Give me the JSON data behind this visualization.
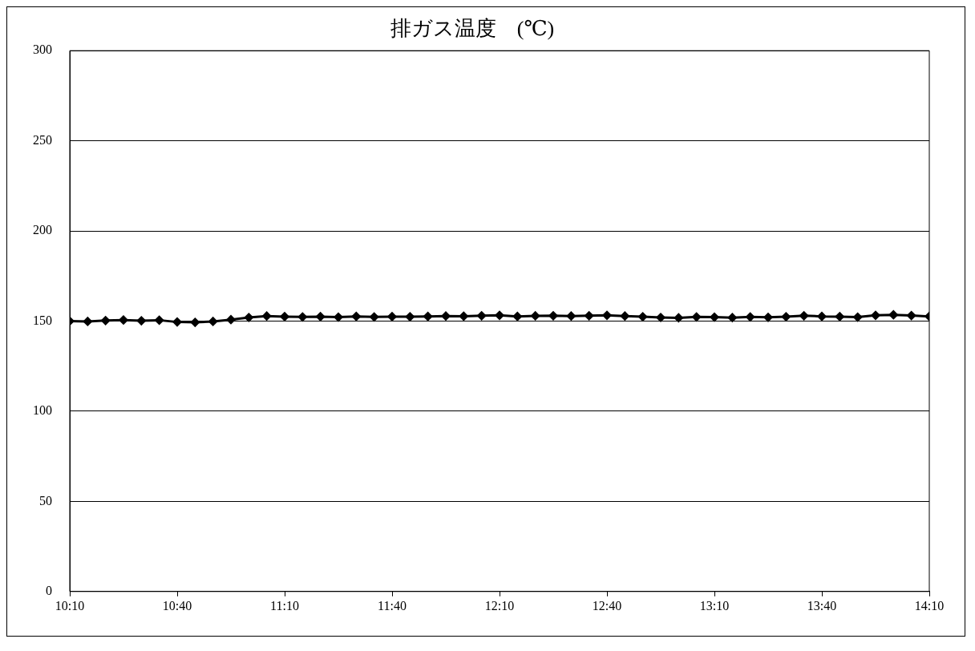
{
  "chart_data": {
    "type": "line",
    "title": "排ガス温度　(℃)",
    "x": [
      10.1667,
      10.25,
      10.3333,
      10.4167,
      10.5,
      10.5833,
      10.6667,
      10.75,
      10.8333,
      10.9167,
      11,
      11.0833,
      11.1667,
      11.25,
      11.3333,
      11.4167,
      11.5,
      11.5833,
      11.6667,
      11.75,
      11.8333,
      11.9167,
      12,
      12.0833,
      12.1667,
      12.25,
      12.3333,
      12.4167,
      12.5,
      12.5833,
      12.6667,
      12.75,
      12.8333,
      12.9167,
      13,
      13.0833,
      13.1667,
      13.25,
      13.3333,
      13.4167,
      13.5,
      13.5833,
      13.6667,
      13.75,
      13.8333,
      13.9167,
      14,
      14.0833,
      14.1667
    ],
    "series": [
      {
        "color": "#000000",
        "values": [
          150,
          149.8,
          150.3,
          150.6,
          150.2,
          150.5,
          149.5,
          149.3,
          149.8,
          150.8,
          152,
          152.8,
          152.5,
          152.3,
          152.5,
          152.2,
          152.6,
          152.3,
          152.5,
          152.4,
          152.6,
          152.8,
          152.7,
          153,
          153.2,
          152.6,
          152.9,
          153,
          152.8,
          153,
          153.2,
          152.8,
          152.4,
          152,
          151.8,
          152.3,
          152.2,
          151.9,
          152.3,
          152.1,
          152.4,
          153,
          152.6,
          152.5,
          152.2,
          153.2,
          153.5,
          153.1,
          152.6
        ]
      }
    ],
    "xlim": [
      10.1667,
      14.1667
    ],
    "xticks": [
      {
        "value": 10.1667,
        "label": "10:10"
      },
      {
        "value": 10.6667,
        "label": "10:40"
      },
      {
        "value": 11.1667,
        "label": "11:10"
      },
      {
        "value": 11.6667,
        "label": "11:40"
      },
      {
        "value": 12.1667,
        "label": "12:10"
      },
      {
        "value": 12.6667,
        "label": "12:40"
      },
      {
        "value": 13.1667,
        "label": "13:10"
      },
      {
        "value": 13.6667,
        "label": "13:40"
      },
      {
        "value": 14.1667,
        "label": "14:10"
      }
    ],
    "ylim": [
      0,
      300
    ],
    "yticks": [
      0,
      50,
      100,
      150,
      200,
      250,
      300
    ],
    "grid": "y",
    "legend": false,
    "marker": "diamond",
    "line_style": "solid"
  }
}
